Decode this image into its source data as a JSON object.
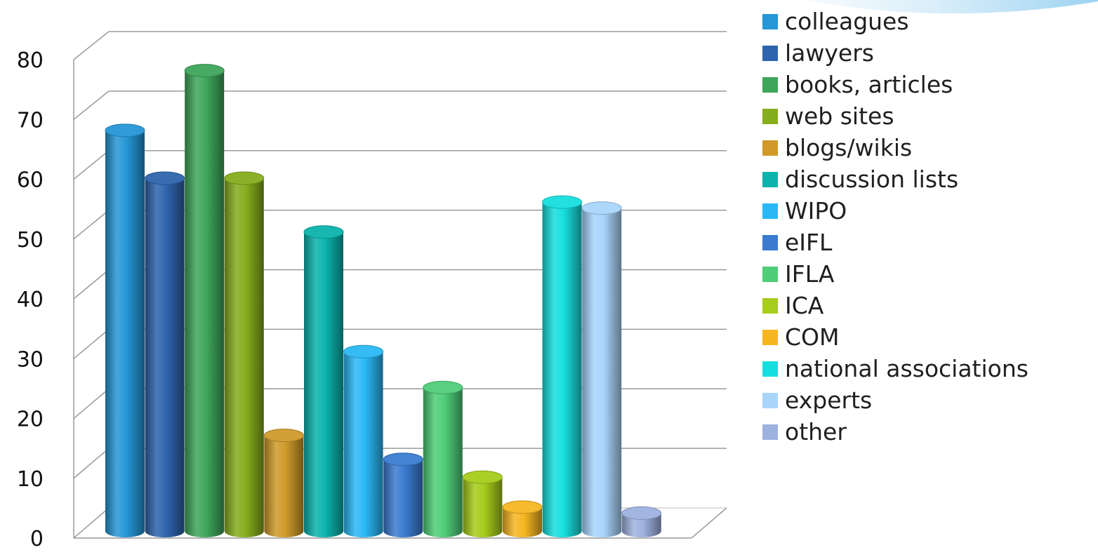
{
  "chart_data": {
    "type": "bar",
    "style": "3d-cylinder",
    "categories": [
      "colleagues",
      "lawyers",
      "books, articles",
      "web sites",
      "blogs/wikis",
      "discussion lists",
      "WIPO",
      "eIFL",
      "IFLA",
      "ICA",
      "COM",
      "national associations",
      "experts",
      "other"
    ],
    "series": [
      {
        "values": [
          67,
          59,
          77,
          59,
          16,
          50,
          30,
          12,
          24,
          9,
          4,
          55,
          54,
          3
        ]
      }
    ],
    "colors": [
      "#2596d6",
      "#2e64ad",
      "#3ea65a",
      "#86ad1d",
      "#cf9a2a",
      "#0bb3ac",
      "#2ab8f4",
      "#3a7bd0",
      "#4fcd78",
      "#a6cc1c",
      "#f5b622",
      "#17dede",
      "#a9d5fb",
      "#9eb2df"
    ],
    "yticks": [
      0,
      10,
      20,
      30,
      40,
      50,
      60,
      70,
      80
    ],
    "ylim": [
      0,
      80
    ],
    "grid": true,
    "legend": "right"
  }
}
